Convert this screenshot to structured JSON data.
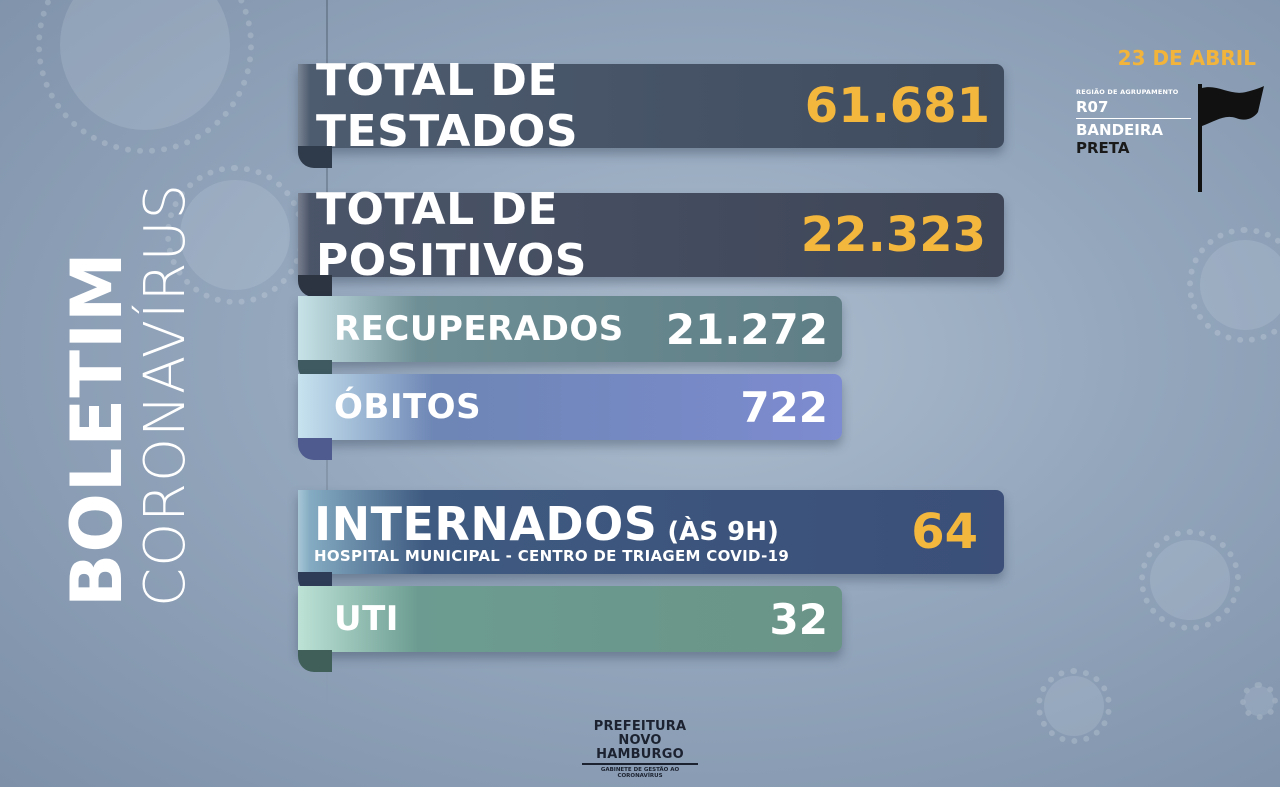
{
  "side": {
    "title": "BOLETIM",
    "subtitle": "CORONAVÍRUS"
  },
  "stats": {
    "tested": {
      "label": "TOTAL DE TESTADOS",
      "value": "61.681"
    },
    "positive": {
      "label": "TOTAL DE POSITIVOS",
      "value": "22.323"
    },
    "recovered": {
      "label": "RECUPERADOS",
      "value": "21.272"
    },
    "deaths": {
      "label": "ÓBITOS",
      "value": "722"
    },
    "hospitalized": {
      "label": "INTERNADOS",
      "time_note": "(ÀS 9H)",
      "sublabel": "HOSPITAL MUNICIPAL - CENTRO DE TRIAGEM COVID-19",
      "value": "64"
    },
    "icu": {
      "label": "UTI",
      "value": "32"
    }
  },
  "header": {
    "date": "23 DE ABRIL",
    "region_label": "REGIÃO DE AGRUPAMENTO",
    "region_code": "R07",
    "flag_line1": "BANDEIRA",
    "flag_line2": "PRETA"
  },
  "logo": {
    "line1": "PREFEITURA",
    "line2": "NOVO HAMBURGO",
    "line3": "GABINETE DE GESTÃO AO CORONAVÍRUS"
  },
  "colors": {
    "accent_orange": "#f4b73d",
    "flag_black": "#111111"
  }
}
